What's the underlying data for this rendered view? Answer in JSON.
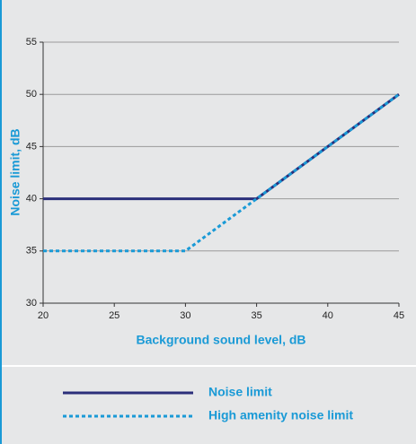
{
  "chart_data": {
    "type": "line",
    "x_label": "Background sound level, dB",
    "y_label": "Noise limit, dB",
    "xlim": [
      20,
      45
    ],
    "xticks": [
      20,
      25,
      30,
      35,
      40,
      45
    ],
    "ylim": [
      30,
      55
    ],
    "yticks": [
      30,
      35,
      40,
      45,
      50,
      55
    ],
    "grid": true,
    "series": [
      {
        "name": "Noise limit",
        "color": "#2b2f7a",
        "x": [
          20,
          35,
          45
        ],
        "values": [
          40,
          40,
          50
        ]
      },
      {
        "name": "High amenity noise limit",
        "color": "#1a9ad6",
        "x": [
          20,
          30,
          35,
          45
        ],
        "values": [
          35,
          35,
          40,
          50
        ]
      }
    ]
  }
}
